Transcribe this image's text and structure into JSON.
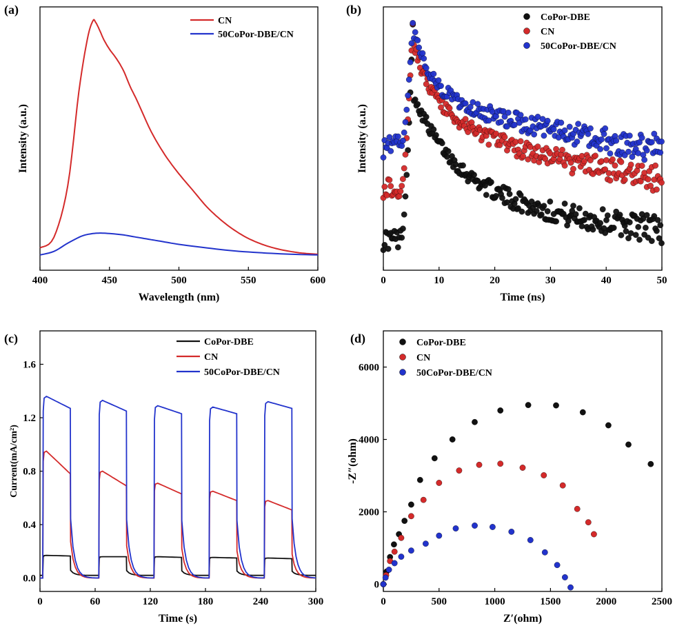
{
  "colors": {
    "black": "#111111",
    "red": "#d42a2a",
    "blue": "#2233cc"
  },
  "chart_data": [
    {
      "panel": "(a)",
      "type": "line",
      "xlabel": "Wavelength (nm)",
      "ylabel": "Intensity (a.u.)",
      "xlim": [
        400,
        600
      ],
      "ylim": [
        0,
        1.0
      ],
      "xticks": [
        400,
        450,
        500,
        550,
        600
      ],
      "yticks": [],
      "legend_position": "top-right",
      "series": [
        {
          "name": "CN",
          "color": "#d42a2a",
          "x": [
            400,
            410,
            420,
            428,
            434,
            438,
            440,
            443,
            446,
            450,
            455,
            460,
            465,
            470,
            480,
            490,
            500,
            510,
            520,
            530,
            540,
            550,
            560,
            570,
            580,
            590,
            600
          ],
          "y": [
            0.035,
            0.08,
            0.3,
            0.7,
            0.92,
            1.0,
            0.995,
            0.96,
            0.92,
            0.88,
            0.84,
            0.79,
            0.72,
            0.66,
            0.53,
            0.43,
            0.35,
            0.28,
            0.21,
            0.155,
            0.11,
            0.075,
            0.05,
            0.032,
            0.02,
            0.012,
            0.008
          ]
        },
        {
          "name": "50CoPor-DBE/CN",
          "color": "#2233cc",
          "x": [
            400,
            410,
            420,
            430,
            437,
            443,
            450,
            460,
            470,
            480,
            490,
            500,
            520,
            540,
            560,
            580,
            600
          ],
          "y": [
            0.005,
            0.02,
            0.055,
            0.085,
            0.095,
            0.098,
            0.096,
            0.09,
            0.08,
            0.07,
            0.06,
            0.05,
            0.035,
            0.022,
            0.014,
            0.008,
            0.005
          ]
        }
      ]
    },
    {
      "panel": "(b)",
      "type": "scatter",
      "xlabel": "Time (ns)",
      "ylabel": "Intensity (a.u.)",
      "xlim": [
        0,
        50
      ],
      "ylim": [
        0,
        1.0
      ],
      "xticks": [
        0,
        10,
        20,
        30,
        40,
        50
      ],
      "yticks": [],
      "legend_position": "top-right",
      "series": [
        {
          "name": "CoPor-DBE",
          "color": "#111111",
          "baseline": 0.08,
          "peak_t": 5.3,
          "peak": 1.0,
          "tail": [
            0.06,
            0.42,
            0.7,
            0.24,
            6.5,
            28
          ]
        },
        {
          "name": "CN",
          "color": "#d42a2a",
          "baseline": 0.3,
          "peak_t": 5.3,
          "peak": 1.0,
          "tail": [
            0.23,
            0.37,
            0.77,
            0.29,
            3.3,
            32
          ]
        },
        {
          "name": "50CoPor-DBE/CN",
          "color": "#2233cc",
          "baseline": 0.47,
          "peak_t": 5.3,
          "peak": 1.0,
          "tail": [
            0.34,
            0.36,
            0.66,
            0.3,
            3.0,
            40
          ]
        }
      ]
    },
    {
      "panel": "(c)",
      "type": "line",
      "xlabel": "Time (s)",
      "ylabel": "Current(mA/cm²)",
      "xlim": [
        0,
        300
      ],
      "ylim": [
        -0.1,
        1.85
      ],
      "xticks": [
        0,
        60,
        120,
        180,
        240,
        300
      ],
      "yticks": [
        0.0,
        0.4,
        0.8,
        1.2,
        1.6
      ],
      "ytick_labels": [
        "0.0",
        "0.4",
        "0.8",
        "1.2",
        "1.6"
      ],
      "legend_position": "top-right",
      "light_on_intervals": [
        [
          3,
          33
        ],
        [
          64,
          94
        ],
        [
          124,
          154
        ],
        [
          184,
          214
        ],
        [
          244,
          274
        ]
      ],
      "series": [
        {
          "name": "CoPor-DBE",
          "color": "#111111",
          "on_start": [
            0.17,
            0.16,
            0.16,
            0.155,
            0.15
          ],
          "on_end": [
            0.165,
            0.16,
            0.155,
            0.15,
            0.145
          ],
          "off_level": 0.02,
          "spike": 0.0
        },
        {
          "name": "CN",
          "color": "#d42a2a",
          "on_start": [
            0.95,
            0.8,
            0.71,
            0.65,
            0.58
          ],
          "on_end": [
            0.78,
            0.69,
            0.63,
            0.58,
            0.51
          ],
          "off_level": 0.0,
          "spike": 0.0
        },
        {
          "name": "50CoPor-DBE/CN",
          "color": "#2233cc",
          "on_start": [
            1.36,
            1.33,
            1.29,
            1.28,
            1.32
          ],
          "on_end": [
            1.27,
            1.25,
            1.23,
            1.23,
            1.27
          ],
          "off_level": 0.0,
          "spike": 0.0
        }
      ]
    },
    {
      "panel": "(d)",
      "type": "scatter",
      "xlabel": "Z′(ohm)",
      "ylabel": "-Z″(ohm)",
      "xlim": [
        0,
        2500
      ],
      "ylim": [
        -200,
        7000
      ],
      "xticks": [
        0,
        500,
        1000,
        1500,
        2000,
        2500
      ],
      "yticks": [
        0,
        2000,
        4000,
        6000
      ],
      "legend_position": "top-left",
      "series": [
        {
          "name": "CoPor-DBE",
          "color": "#111111",
          "x": [
            0,
            30,
            60,
            95,
            140,
            190,
            250,
            330,
            460,
            620,
            820,
            1050,
            1300,
            1550,
            1790,
            2020,
            2200,
            2400
          ],
          "y": [
            0,
            350,
            750,
            1100,
            1380,
            1750,
            2200,
            2880,
            3480,
            4000,
            4480,
            4800,
            4950,
            4940,
            4750,
            4390,
            3860,
            3320
          ]
        },
        {
          "name": "CN",
          "color": "#d42a2a",
          "x": [
            0,
            25,
            60,
            100,
            160,
            250,
            360,
            500,
            680,
            860,
            1050,
            1250,
            1440,
            1610,
            1740,
            1840,
            1890
          ],
          "y": [
            0,
            250,
            640,
            900,
            1280,
            1880,
            2330,
            2800,
            3140,
            3300,
            3330,
            3220,
            3010,
            2730,
            2080,
            1710,
            1380
          ]
        },
        {
          "name": "50CoPor-DBE/CN",
          "color": "#2233cc",
          "x": [
            0,
            20,
            50,
            100,
            160,
            250,
            380,
            500,
            650,
            820,
            980,
            1150,
            1320,
            1450,
            1560,
            1630,
            1680
          ],
          "y": [
            0,
            180,
            400,
            580,
            760,
            930,
            1120,
            1340,
            1540,
            1620,
            1580,
            1450,
            1220,
            880,
            530,
            190,
            -90
          ]
        }
      ]
    }
  ]
}
